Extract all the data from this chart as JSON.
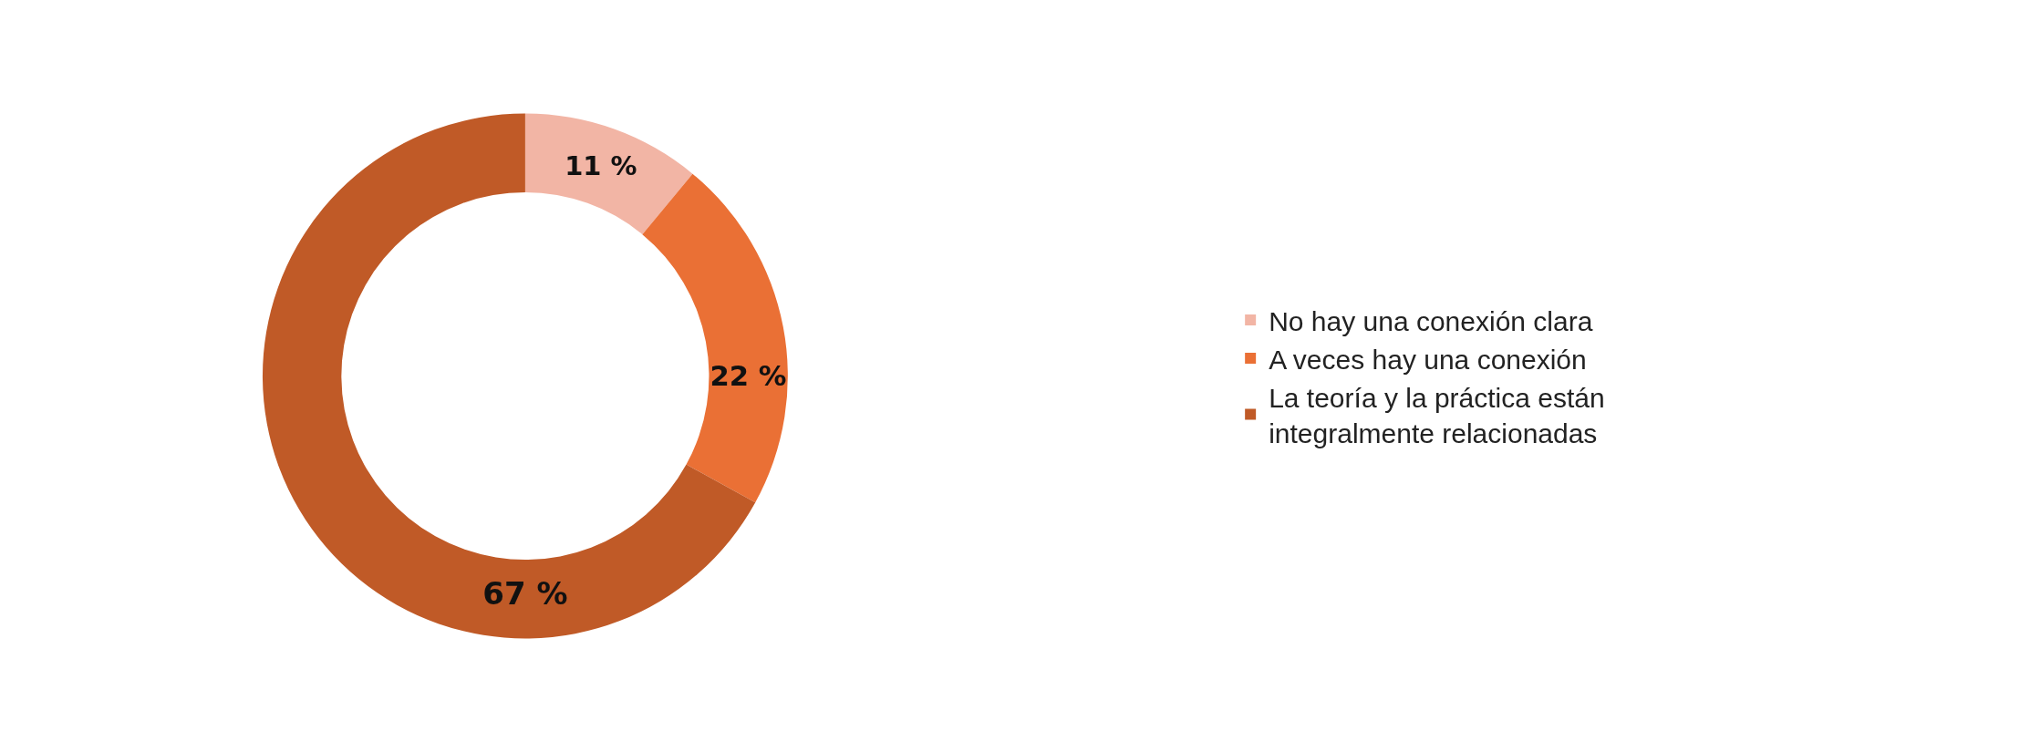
{
  "chart_data": {
    "type": "donut",
    "categories": [
      "No hay una conexión clara",
      "A veces hay una conexión",
      "La teoría y la práctica están integralmente relacionadas"
    ],
    "values": [
      11,
      22,
      67
    ],
    "value_labels": [
      "11 %",
      "22 %",
      "67 %"
    ],
    "colors": [
      "#f2b5a5",
      "#ea7035",
      "#c05a27"
    ],
    "legend": "right"
  }
}
